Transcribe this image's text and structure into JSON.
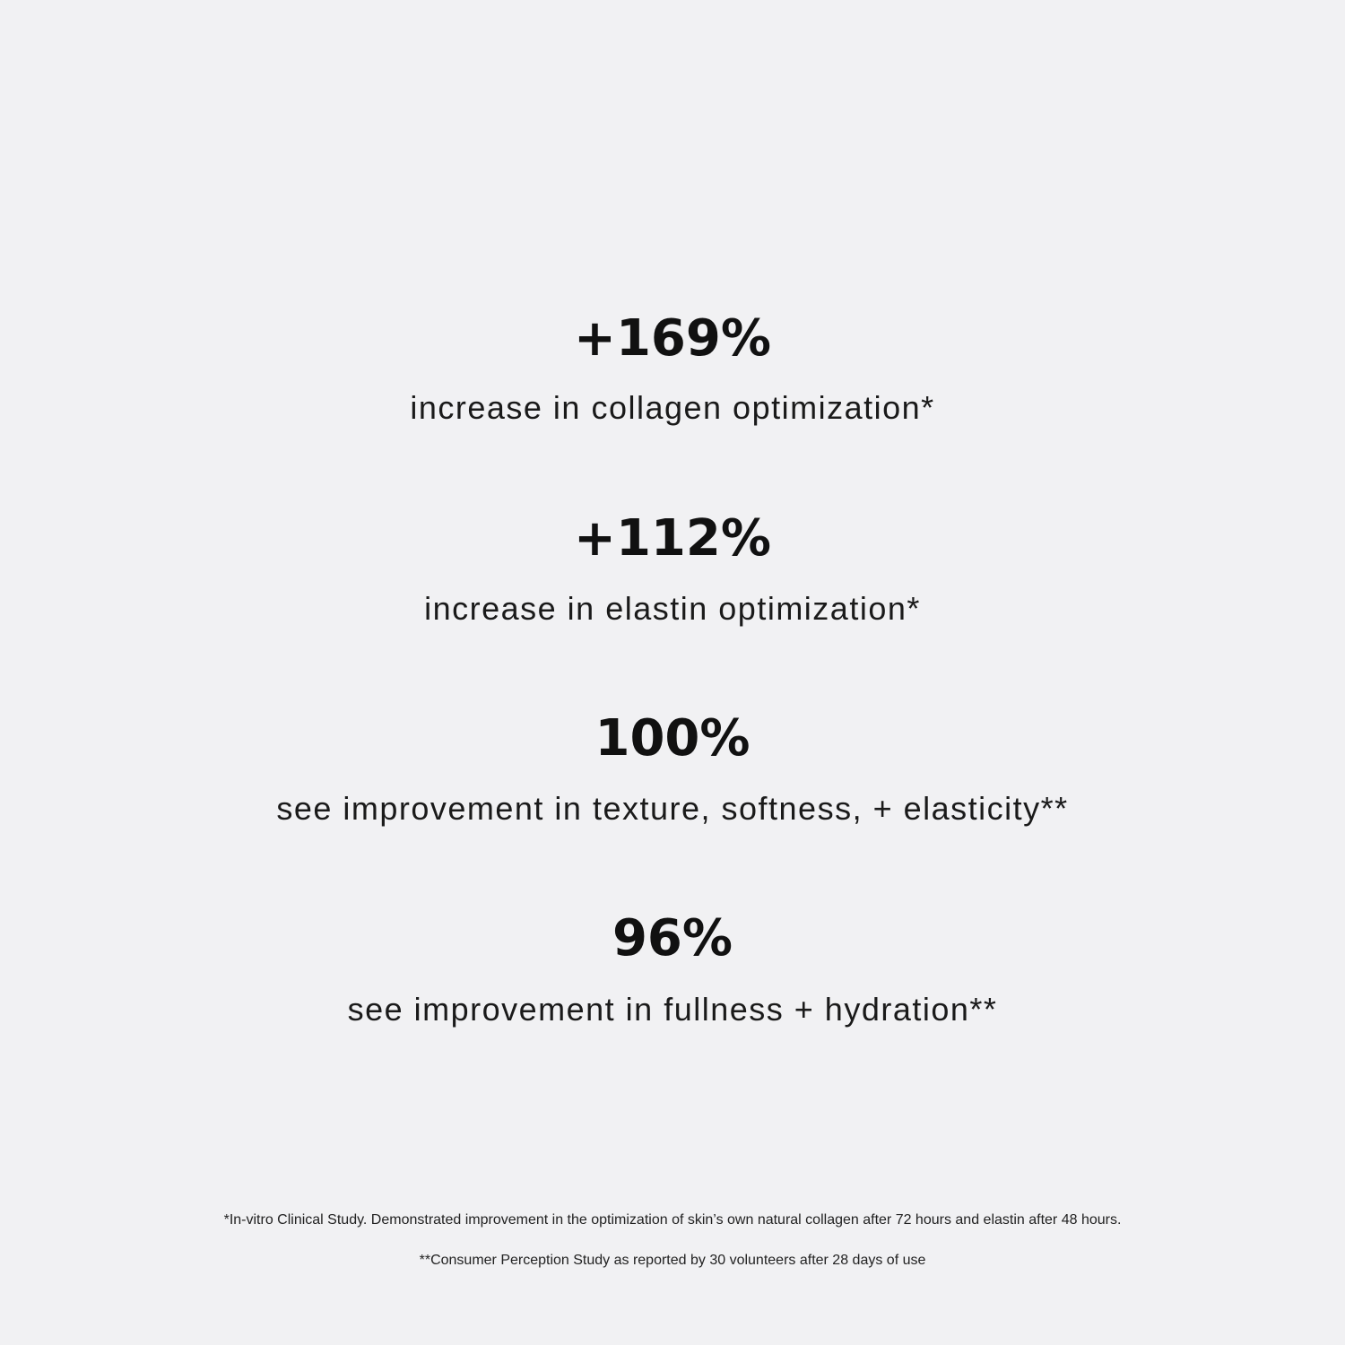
{
  "stats": [
    {
      "value": "+169%",
      "label": "increase in collagen optimization*"
    },
    {
      "value": "+112%",
      "label": "increase in elastin optimization*"
    },
    {
      "value": "100%",
      "label": "see improvement in texture, softness, + elasticity**"
    },
    {
      "value": "96%",
      "label": "see improvement in fullness + hydration**"
    }
  ],
  "footnotes": [
    "*In-vitro Clinical Study. Demonstrated improvement in the optimization of skin’s own natural collagen after 72 hours and elastin after 48 hours.",
    "**Consumer Perception Study as reported by 30 volunteers after 28 days of use"
  ],
  "colors": {
    "background": "#f1f1f3",
    "text": "#111111"
  }
}
